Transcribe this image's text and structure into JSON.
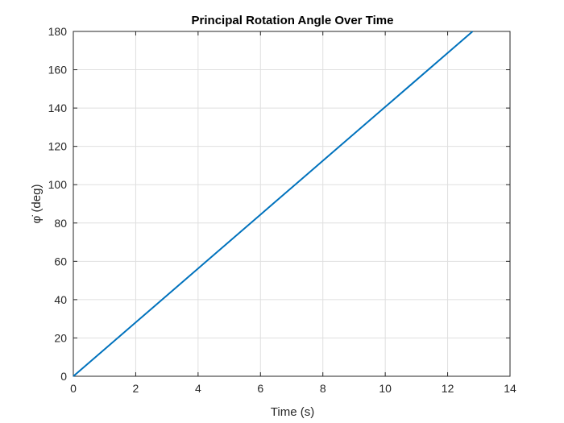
{
  "chart_data": {
    "type": "line",
    "title": "Principal Rotation Angle Over Time",
    "xlabel": "Time (s)",
    "ylabel": "φ̇ (deg)",
    "xlim": [
      0,
      14
    ],
    "ylim": [
      0,
      180
    ],
    "xticks": [
      0,
      2,
      4,
      6,
      8,
      10,
      12,
      14
    ],
    "yticks": [
      0,
      20,
      40,
      60,
      80,
      100,
      120,
      140,
      160,
      180
    ],
    "grid": true,
    "series": [
      {
        "color": "#0072BD",
        "x": [
          0,
          2,
          4,
          6,
          8,
          10,
          12,
          12.8
        ],
        "y": [
          0,
          28.1,
          56.25,
          84.4,
          112.5,
          140.6,
          168.75,
          180
        ]
      }
    ]
  }
}
